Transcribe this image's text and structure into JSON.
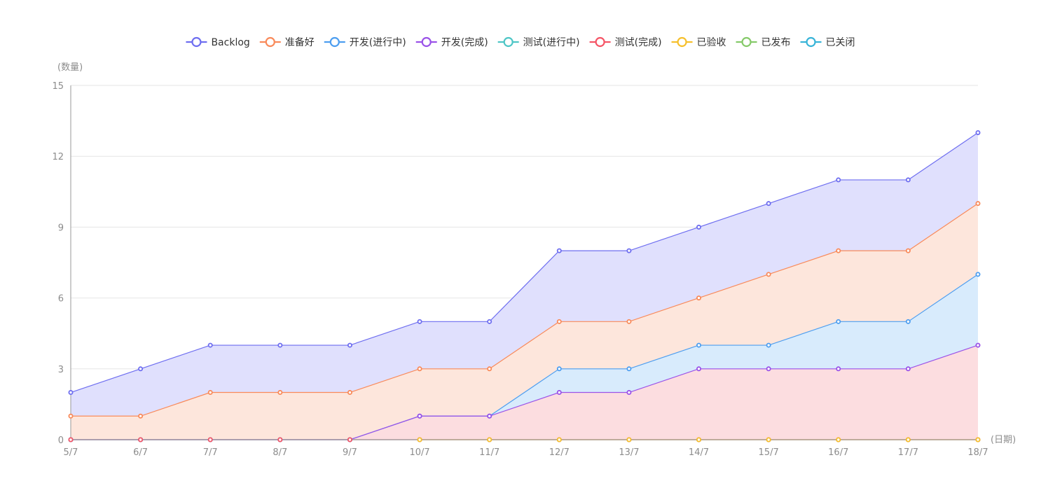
{
  "chart_data": {
    "type": "area",
    "stacked": true,
    "ylabel": "(数量)",
    "xlabel": "(日期)",
    "ylim": [
      0,
      15
    ],
    "yticks": [
      0,
      3,
      6,
      9,
      12,
      15
    ],
    "grid": true,
    "legend_position": "top",
    "categories": [
      "5/7",
      "6/7",
      "7/7",
      "8/7",
      "9/7",
      "10/7",
      "11/7",
      "12/7",
      "13/7",
      "14/7",
      "15/7",
      "16/7",
      "17/7",
      "18/7"
    ],
    "series": [
      {
        "name": "Backlog",
        "color": "#6e6ef0",
        "fill": "#e0e0fd",
        "values": [
          2,
          3,
          4,
          4,
          4,
          5,
          5,
          8,
          8,
          9,
          10,
          11,
          11,
          13
        ]
      },
      {
        "name": "准备好",
        "color": "#f98a5a",
        "fill": "#fde6dc",
        "values": [
          1,
          1,
          2,
          2,
          2,
          3,
          3,
          5,
          5,
          6,
          7,
          8,
          8,
          10
        ]
      },
      {
        "name": "开发(进行中)",
        "color": "#4d9ef0",
        "fill": "#d8ebfc",
        "values": [
          0,
          0,
          0,
          0,
          0,
          1,
          1,
          3,
          3,
          4,
          4,
          5,
          5,
          7
        ]
      },
      {
        "name": "开发(完成)",
        "color": "#9a52e8",
        "fill": "#fcdde0",
        "values": [
          0,
          0,
          0,
          0,
          0,
          1,
          1,
          2,
          2,
          3,
          3,
          3,
          3,
          4
        ]
      },
      {
        "name": "测试(进行中)",
        "color": "#4ec6c6",
        "fill": "none",
        "values": [
          0,
          0,
          0,
          0,
          0,
          0,
          0,
          0,
          0,
          0,
          0,
          0,
          0,
          0
        ]
      },
      {
        "name": "测试(完成)",
        "color": "#f55566",
        "fill": "none",
        "values": [
          0,
          0,
          0,
          0,
          0,
          0,
          0,
          0,
          0,
          0,
          0,
          0,
          0,
          0
        ]
      },
      {
        "name": "已验收",
        "color": "#f6c02d",
        "fill": "none",
        "values": [
          null,
          null,
          null,
          null,
          null,
          0,
          0,
          0,
          0,
          0,
          0,
          0,
          0,
          0
        ]
      },
      {
        "name": "已发布",
        "color": "#86ca6a",
        "fill": "none",
        "values": [
          null,
          null,
          null,
          null,
          null,
          null,
          null,
          null,
          null,
          null,
          null,
          null,
          null,
          null
        ]
      },
      {
        "name": "已关闭",
        "color": "#38b4d8",
        "fill": "none",
        "values": [
          null,
          null,
          null,
          null,
          null,
          null,
          null,
          null,
          null,
          null,
          null,
          null,
          null,
          null
        ]
      }
    ]
  }
}
